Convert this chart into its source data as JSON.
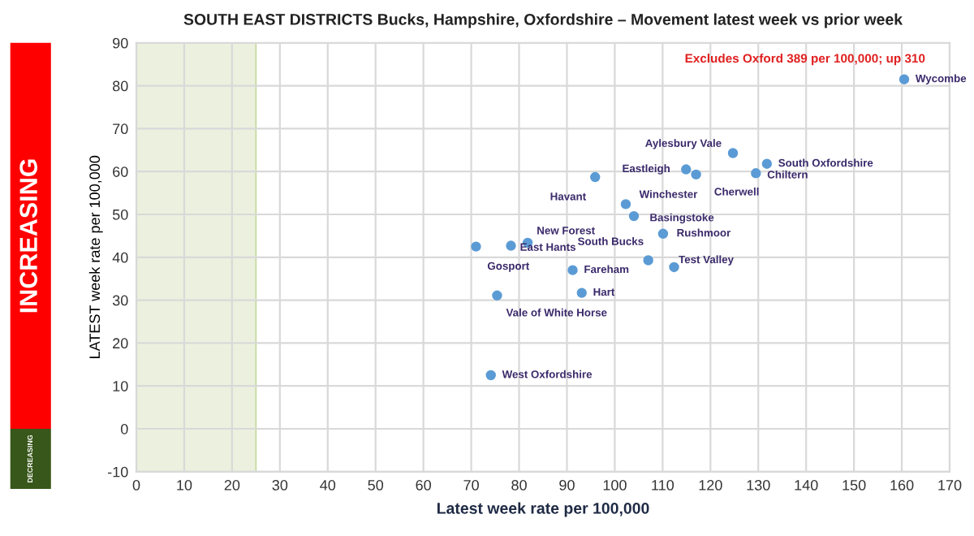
{
  "chart_data": {
    "type": "scatter",
    "title": "SOUTH EAST DISTRICTS Bucks, Hampshire, Oxfordshire – Movement latest week vs prior week",
    "xlabel": "Latest week rate per 100,000",
    "ylabel": "LATEST week rate per 100,000",
    "series": [
      {
        "color": "#5b9bd5",
        "x": [
          160.5,
          124.7,
          131.8,
          129.5,
          114.9,
          117,
          95.9,
          102.3,
          104,
          110.1,
          81.8,
          78.3,
          71,
          107,
          112.4,
          91.2,
          93.1,
          75.4,
          74.1
        ],
        "values": [
          81.5,
          64.3,
          61.8,
          59.6,
          60.5,
          59.3,
          58.7,
          52.4,
          49.6,
          45.5,
          43.4,
          42.7,
          42.5,
          39.3,
          37.7,
          37.0,
          31.7,
          31.1,
          12.5
        ]
      }
    ],
    "annotations": [
      {
        "text": "Wycombe",
        "x": 160.5,
        "y": 81.5
      },
      {
        "text": "Aylesbury Vale",
        "x": 124.7,
        "y": 64.3
      },
      {
        "text": "South Oxfordshire",
        "x": 131.8,
        "y": 61.8
      },
      {
        "text": "Chiltern",
        "x": 129.5,
        "y": 59.6
      },
      {
        "text": "Eastleigh",
        "x": 114.9,
        "y": 60.5
      },
      {
        "text": "Cherwell",
        "x": 117,
        "y": 59.3
      },
      {
        "text": "Havant",
        "x": 95.9,
        "y": 58.7
      },
      {
        "text": "Winchester",
        "x": 102.3,
        "y": 52.4
      },
      {
        "text": "Basingstoke",
        "x": 104,
        "y": 49.6
      },
      {
        "text": "Rushmoor",
        "x": 110.1,
        "y": 45.5
      },
      {
        "text": "New Forest",
        "x": 81.8,
        "y": 43.4
      },
      {
        "text": "East Hants",
        "x": 78.3,
        "y": 42.7
      },
      {
        "text": "Gosport",
        "x": 71,
        "y": 42.5
      },
      {
        "text": "South Bucks",
        "x": 107,
        "y": 39.3
      },
      {
        "text": "Test Valley",
        "x": 112.4,
        "y": 37.7
      },
      {
        "text": "Fareham",
        "x": 91.2,
        "y": 37.0
      },
      {
        "text": "Hart",
        "x": 93.1,
        "y": 31.7
      },
      {
        "text": "Vale of White Horse",
        "x": 75.4,
        "y": 31.1
      },
      {
        "text": "West Oxfordshire",
        "x": 74.1,
        "y": 12.5
      },
      "Excludes Oxford 389 per 100,000; up 310",
      "INCREASING",
      "DECREASING"
    ],
    "bands": [
      {
        "axis": "x",
        "from": 0,
        "to": 25,
        "color": "#ebf1de"
      }
    ],
    "xlim": [
      0,
      170
    ],
    "xticks": [
      0,
      10,
      20,
      30,
      40,
      50,
      60,
      70,
      80,
      90,
      100,
      110,
      120,
      130,
      140,
      150,
      160,
      170
    ],
    "ylim": [
      -10,
      90
    ],
    "yticks": [
      -10,
      0,
      10,
      20,
      30,
      40,
      50,
      60,
      70,
      80,
      90
    ],
    "grid": true,
    "marker": "circle"
  }
}
